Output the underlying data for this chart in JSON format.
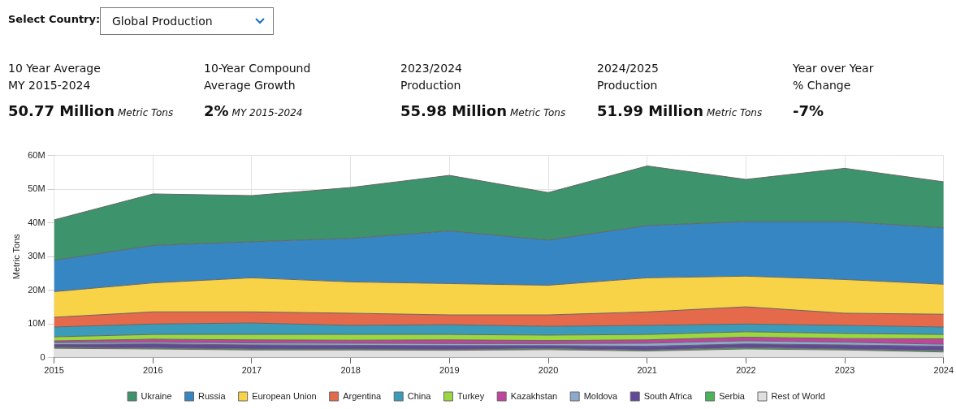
{
  "chart_data": {
    "type": "area",
    "stacked": true,
    "ylabel": "Metric Tons",
    "annotations": [
      "Select Country:",
      "Global Production",
      "10 Year Average\nMY 2015-2024",
      "50.77 Million",
      "Metric Tons",
      "10-Year Compound\nAverage Growth",
      "2%",
      "MY 2015-2024",
      "2023/2024\nProduction",
      "55.98 Million",
      "Metric Tons",
      "2024/2025\nProduction",
      "51.99 Million",
      "Metric Tons",
      "Year over Year\n% Change",
      "-7%"
    ],
    "x": [
      2015,
      2016,
      2017,
      2018,
      2019,
      2020,
      2021,
      2022,
      2023,
      2024
    ],
    "xlim": [
      2015,
      2024
    ],
    "xticks": [
      2015,
      2016,
      2017,
      2018,
      2019,
      2020,
      2021,
      2022,
      2023,
      2024
    ],
    "ylim": [
      0,
      60
    ],
    "yticks": [
      0,
      {
        "value": 10,
        "label": "10M"
      },
      {
        "value": 20,
        "label": "20M"
      },
      {
        "value": 30,
        "label": "30M"
      },
      {
        "value": 40,
        "label": "40M"
      },
      {
        "value": 50,
        "label": "50M"
      },
      {
        "value": 60,
        "label": "60M"
      }
    ],
    "grid": true,
    "legend": "bottom",
    "marker": "none",
    "series": [
      {
        "name": "Rest of World",
        "color": "#e0e0e0",
        "values": [
          2.8,
          2.6,
          2.3,
          2.3,
          2.2,
          2.4,
          2.0,
          2.6,
          2.3,
          1.7
        ]
      },
      {
        "name": "Serbia",
        "color": "#4bb458",
        "values": [
          0.3,
          0.3,
          0.3,
          0.3,
          0.3,
          0.3,
          0.3,
          0.4,
          0.3,
          0.4
        ]
      },
      {
        "name": "South Africa",
        "color": "#62489a",
        "values": [
          0.8,
          1.2,
          1.2,
          1.1,
          1.1,
          0.9,
          1.1,
          1.1,
          1.2,
          1.3
        ]
      },
      {
        "name": "Moldova",
        "color": "#8ea9ce",
        "values": [
          0.6,
          0.5,
          0.6,
          0.6,
          0.6,
          0.6,
          0.9,
          0.9,
          0.8,
          0.6
        ]
      },
      {
        "name": "Kazakhstan",
        "color": "#c2449e",
        "values": [
          0.5,
          0.9,
          0.9,
          0.9,
          1.1,
          0.9,
          1.0,
          1.1,
          1.1,
          1.6
        ]
      },
      {
        "name": "Turkey",
        "color": "#9ad83d",
        "values": [
          1.2,
          1.4,
          1.6,
          1.7,
          1.6,
          1.6,
          1.6,
          1.6,
          1.5,
          1.3
        ]
      },
      {
        "name": "China",
        "color": "#3c9bb8",
        "values": [
          2.9,
          3.1,
          3.4,
          2.7,
          2.9,
          2.6,
          2.7,
          2.3,
          2.4,
          2.2
        ]
      },
      {
        "name": "Argentina",
        "color": "#e5694b",
        "values": [
          2.9,
          3.6,
          3.3,
          3.6,
          2.9,
          3.4,
          4.0,
          5.1,
          3.6,
          3.8
        ]
      },
      {
        "name": "European Union",
        "color": "#f8d247",
        "values": [
          7.6,
          8.6,
          10.1,
          9.3,
          9.3,
          8.8,
          10.1,
          9.1,
          10.0,
          8.9
        ]
      },
      {
        "name": "Russia",
        "color": "#3786c4",
        "values": [
          9.3,
          11.1,
          10.7,
          12.9,
          15.6,
          13.4,
          15.5,
          16.2,
          17.2,
          16.7
        ]
      },
      {
        "name": "Ukraine",
        "color": "#3c936c",
        "values": [
          12.0,
          15.3,
          13.7,
          15.1,
          16.5,
          14.1,
          17.7,
          12.5,
          15.8,
          13.7
        ]
      }
    ]
  }
}
